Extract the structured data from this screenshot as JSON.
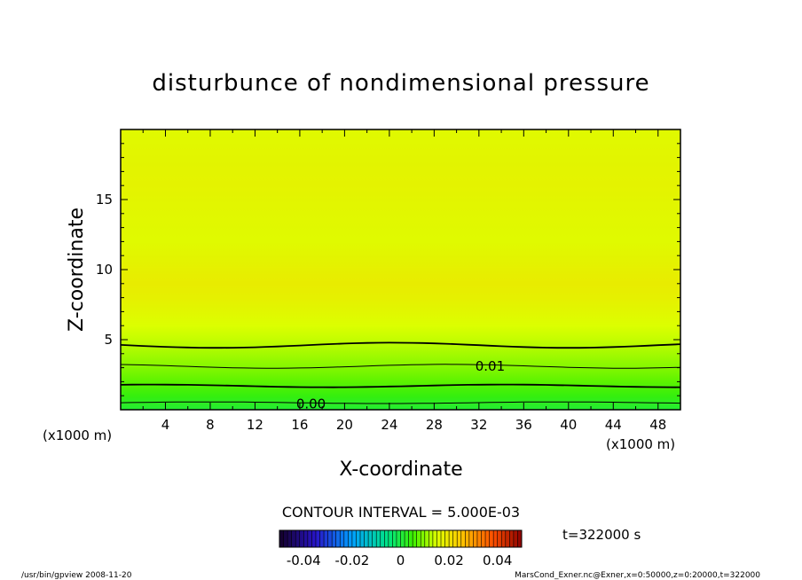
{
  "chart_data": {
    "type": "heatmap",
    "title": "disturbunce of nondimensional pressure",
    "xlabel": "X-coordinate",
    "ylabel": "Z-coordinate",
    "x_unit_left": "(x1000 m)",
    "x_unit_right": "(x1000 m)",
    "xlim": [
      0,
      50
    ],
    "ylim": [
      0,
      20
    ],
    "x_ticks": [
      4,
      8,
      12,
      16,
      20,
      24,
      28,
      32,
      36,
      40,
      44,
      48
    ],
    "y_ticks": [
      5,
      10,
      15
    ],
    "contour_labels": [
      {
        "text": "0.01",
        "x": 33,
        "z": 3.1
      },
      {
        "text": "0.00",
        "x": 17,
        "z": 0.4
      }
    ],
    "contour_interval_text": "CONTOUR INTERVAL = 5.000E-03",
    "colorbar": {
      "ticks": [
        "-0.04",
        "-0.02",
        "0",
        "0.02",
        "0.04"
      ],
      "tick_values": [
        -0.04,
        -0.02,
        0,
        0.02,
        0.04
      ],
      "range": [
        -0.05,
        0.05
      ]
    },
    "time_label": "t=322000 s",
    "field_profile": [
      {
        "z": 0.0,
        "value": 0.001
      },
      {
        "z": 1.0,
        "value": 0.004
      },
      {
        "z": 2.0,
        "value": 0.007
      },
      {
        "z": 3.0,
        "value": 0.0095
      },
      {
        "z": 4.0,
        "value": 0.0115
      },
      {
        "z": 5.0,
        "value": 0.0135
      },
      {
        "z": 6.0,
        "value": 0.015
      },
      {
        "z": 7.0,
        "value": 0.0165
      },
      {
        "z": 8.0,
        "value": 0.0178
      },
      {
        "z": 9.0,
        "value": 0.0185
      },
      {
        "z": 10.0,
        "value": 0.0178
      },
      {
        "z": 11.0,
        "value": 0.0168
      },
      {
        "z": 12.0,
        "value": 0.016
      },
      {
        "z": 14.0,
        "value": 0.0165
      },
      {
        "z": 16.0,
        "value": 0.0172
      },
      {
        "z": 18.0,
        "value": 0.0168
      },
      {
        "z": 20.0,
        "value": 0.016
      }
    ],
    "contour_lines_z": [
      0.5,
      1.7,
      3.1,
      4.6
    ]
  },
  "footer": {
    "left": "/usr/bin/gpview   2008-11-20",
    "right": "MarsCond_Exner.nc@Exner,x=0:50000,z=0:20000,t=322000"
  },
  "colors": {
    "background": "#ffffff",
    "axis": "#000000"
  }
}
